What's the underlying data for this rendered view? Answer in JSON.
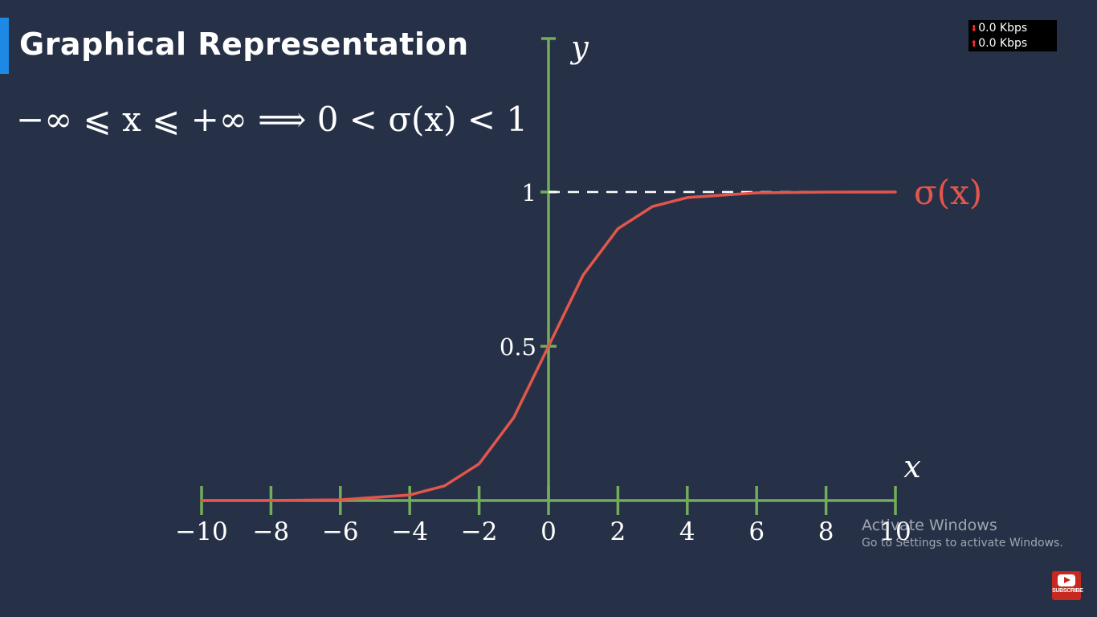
{
  "title": "Graphical Representation",
  "formula": "−∞ ⩽ x ⩽ +∞ ⟹ 0 < σ(x) < 1",
  "netspeed": {
    "down": "0.0 Kbps",
    "up": "0.0 Kbps"
  },
  "activate_windows": {
    "title": "Activate Windows",
    "subtitle": "Go to Settings to activate Windows."
  },
  "subscribe_label": "SUBSCRIBE",
  "colors": {
    "background": "#263147",
    "axis": "#72ad5c",
    "curve": "#e3564b",
    "accent": "#1e88e5",
    "asymptote": "#ffffff"
  },
  "chart_data": {
    "type": "line",
    "title": "",
    "xlabel": "x",
    "ylabel": "y",
    "xlim": [
      -10,
      10
    ],
    "x_ticks": [
      -10,
      -8,
      -6,
      -4,
      -2,
      0,
      2,
      4,
      6,
      8,
      10
    ],
    "x_tick_labels": [
      "−10",
      "−8",
      "−6",
      "−4",
      "−2",
      "0",
      "2",
      "4",
      "6",
      "8",
      "10"
    ],
    "y_ticks": [
      0.5,
      1
    ],
    "y_tick_labels": [
      "0.5",
      "1"
    ],
    "asymptote_y": 1,
    "grid": false,
    "series": [
      {
        "name": "σ(x)",
        "x": [
          -10,
          -8,
          -6,
          -4,
          -3,
          -2,
          -1,
          0,
          1,
          2,
          3,
          4,
          6,
          8,
          10
        ],
        "y": [
          4.54e-05,
          0.000335,
          0.00247,
          0.018,
          0.0474,
          0.119,
          0.269,
          0.5,
          0.731,
          0.881,
          0.953,
          0.982,
          0.9975,
          0.99966,
          0.99995
        ]
      }
    ]
  }
}
